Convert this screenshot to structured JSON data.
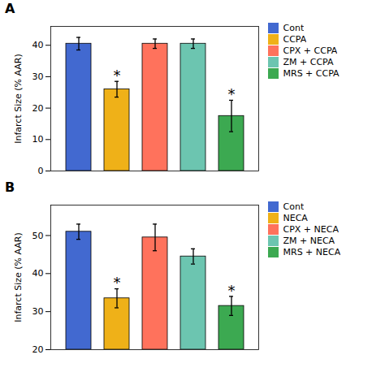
{
  "chart_data": [
    {
      "type": "bar",
      "title": "A",
      "ylabel": "Infarct Size (% AAR)",
      "categories": [
        "Cont",
        "CCPA",
        "CPX + CCPA",
        "ZM + CCPA",
        "MRS + CCPA"
      ],
      "values": [
        40.5,
        26.0,
        40.5,
        40.5,
        17.5
      ],
      "errors": [
        2.0,
        2.5,
        1.5,
        1.5,
        5.0
      ],
      "ylim": [
        0,
        46
      ],
      "yticks": [
        0,
        10,
        20,
        30,
        40
      ],
      "annotations": [
        {
          "text": "*",
          "category": "CCPA"
        },
        {
          "text": "*",
          "category": "MRS + CCPA"
        }
      ],
      "legend": "right",
      "tick_labels": "y",
      "grid": false
    },
    {
      "type": "bar",
      "title": "B",
      "ylabel": "Infarct Size (% AAR)",
      "categories": [
        "Cont",
        "NECA",
        "CPX + NECA",
        "ZM + NECA",
        "MRS + NECA"
      ],
      "values": [
        51.0,
        33.5,
        49.5,
        44.5,
        31.5
      ],
      "errors": [
        2.0,
        2.5,
        3.5,
        2.0,
        2.5
      ],
      "ylim": [
        20,
        58
      ],
      "yticks": [
        20,
        30,
        40,
        50
      ],
      "annotations": [
        {
          "text": "*",
          "category": "NECA"
        },
        {
          "text": "*",
          "category": "MRS + NECA"
        }
      ],
      "legend": "right",
      "tick_labels": "y",
      "grid": false
    }
  ]
}
